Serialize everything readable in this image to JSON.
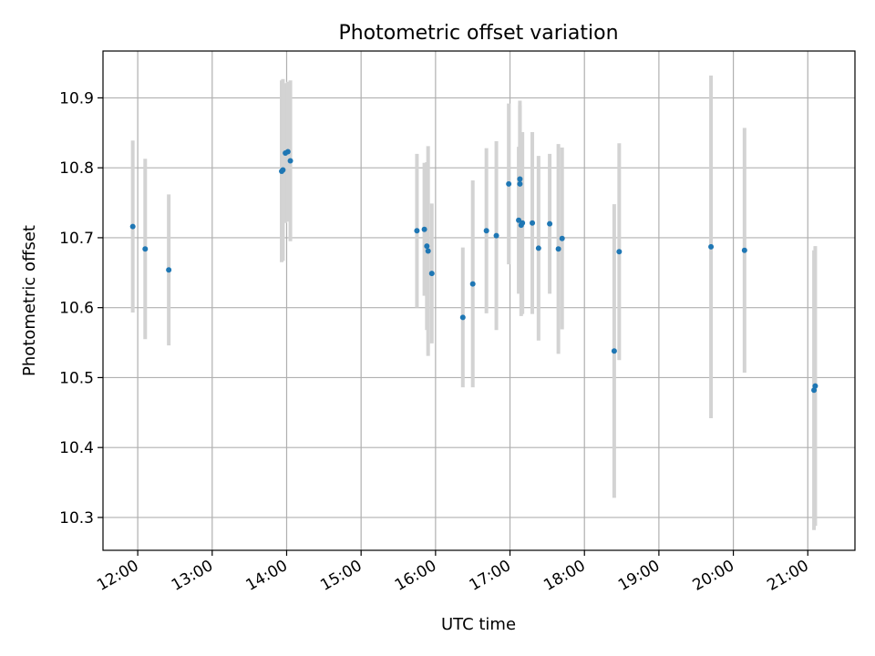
{
  "chart_data": {
    "type": "scatter",
    "title": "Photometric offset variation",
    "xlabel": "UTC time",
    "ylabel": "Photometric offset",
    "xlim": [
      "11:32",
      "21:38"
    ],
    "ylim": [
      10.253,
      10.967
    ],
    "grid": true,
    "x_ticks": [
      "12:00",
      "13:00",
      "14:00",
      "15:00",
      "16:00",
      "17:00",
      "18:00",
      "19:00",
      "20:00",
      "21:00"
    ],
    "y_ticks": [
      "10.3",
      "10.4",
      "10.5",
      "10.6",
      "10.7",
      "10.8",
      "10.9"
    ],
    "point_color": "#1f77b4",
    "errorbar_color": "#d3d3d3",
    "points": [
      {
        "time": "11:56",
        "y": 10.716,
        "err": 0.123
      },
      {
        "time": "12:06",
        "y": 10.684,
        "err": 0.129
      },
      {
        "time": "12:25",
        "y": 10.654,
        "err": 0.108
      },
      {
        "time": "13:56",
        "y": 10.795,
        "err": 0.13
      },
      {
        "time": "13:57",
        "y": 10.797,
        "err": 0.13
      },
      {
        "time": "13:59",
        "y": 10.821,
        "err": 0.1
      },
      {
        "time": "14:01",
        "y": 10.823,
        "err": 0.1
      },
      {
        "time": "14:03",
        "y": 10.81,
        "err": 0.115
      },
      {
        "time": "15:45",
        "y": 10.71,
        "err": 0.11
      },
      {
        "time": "15:51",
        "y": 10.712,
        "err": 0.095
      },
      {
        "time": "15:53",
        "y": 10.688,
        "err": 0.12
      },
      {
        "time": "15:54",
        "y": 10.681,
        "err": 0.15
      },
      {
        "time": "15:57",
        "y": 10.649,
        "err": 0.1
      },
      {
        "time": "16:22",
        "y": 10.586,
        "err": 0.1
      },
      {
        "time": "16:30",
        "y": 10.634,
        "err": 0.148
      },
      {
        "time": "16:41",
        "y": 10.71,
        "err": 0.118
      },
      {
        "time": "16:49",
        "y": 10.703,
        "err": 0.135
      },
      {
        "time": "16:59",
        "y": 10.777,
        "err": 0.115
      },
      {
        "time": "17:07",
        "y": 10.725,
        "err": 0.105
      },
      {
        "time": "17:08",
        "y": 10.784,
        "err": 0.112
      },
      {
        "time": "17:08",
        "y": 10.777,
        "err": 0.112
      },
      {
        "time": "17:09",
        "y": 10.718,
        "err": 0.13
      },
      {
        "time": "17:10",
        "y": 10.721,
        "err": 0.13
      },
      {
        "time": "17:18",
        "y": 10.721,
        "err": 0.13
      },
      {
        "time": "17:23",
        "y": 10.685,
        "err": 0.132
      },
      {
        "time": "17:32",
        "y": 10.72,
        "err": 0.1
      },
      {
        "time": "17:39",
        "y": 10.684,
        "err": 0.15
      },
      {
        "time": "17:42",
        "y": 10.699,
        "err": 0.13
      },
      {
        "time": "18:24",
        "y": 10.538,
        "err": 0.21
      },
      {
        "time": "18:28",
        "y": 10.68,
        "err": 0.155
      },
      {
        "time": "19:42",
        "y": 10.687,
        "err": 0.245
      },
      {
        "time": "20:09",
        "y": 10.682,
        "err": 0.175
      },
      {
        "time": "21:05",
        "y": 10.482,
        "err": 0.2
      },
      {
        "time": "21:06",
        "y": 10.488,
        "err": 0.2
      }
    ]
  }
}
